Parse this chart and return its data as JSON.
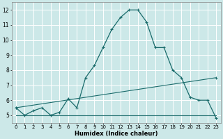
{
  "xlabel": "Humidex (Indice chaleur)",
  "bg_color": "#cce8e8",
  "grid_color": "#ffffff",
  "line_color": "#1a6b6b",
  "xlim": [
    -0.5,
    23.5
  ],
  "ylim": [
    4.5,
    12.5
  ],
  "yticks": [
    5,
    6,
    7,
    8,
    9,
    10,
    11,
    12
  ],
  "xtick_labels": [
    "0",
    "1",
    "2",
    "3",
    "4",
    "5",
    "6",
    "7",
    "8",
    "9",
    "10",
    "11",
    "12",
    "13",
    "14",
    "15",
    "16",
    "17",
    "18",
    "19",
    "20",
    "21",
    "22",
    "23"
  ],
  "series1_x": [
    0,
    1,
    2,
    3,
    4,
    5,
    6,
    7,
    8,
    9,
    10,
    11,
    12,
    13,
    14,
    15,
    16,
    17,
    18,
    19,
    20,
    21,
    22,
    23
  ],
  "series1_y": [
    5.5,
    5.0,
    5.3,
    5.5,
    5.0,
    5.2,
    6.1,
    5.5,
    7.5,
    8.3,
    9.5,
    10.7,
    11.5,
    12.0,
    12.0,
    11.2,
    9.5,
    9.5,
    8.0,
    7.5,
    6.2,
    6.0,
    6.0,
    4.8
  ],
  "series2_x": [
    0,
    23
  ],
  "series2_y": [
    5.5,
    7.5
  ],
  "series3_x": [
    0,
    23
  ],
  "series3_y": [
    5.0,
    5.0
  ]
}
